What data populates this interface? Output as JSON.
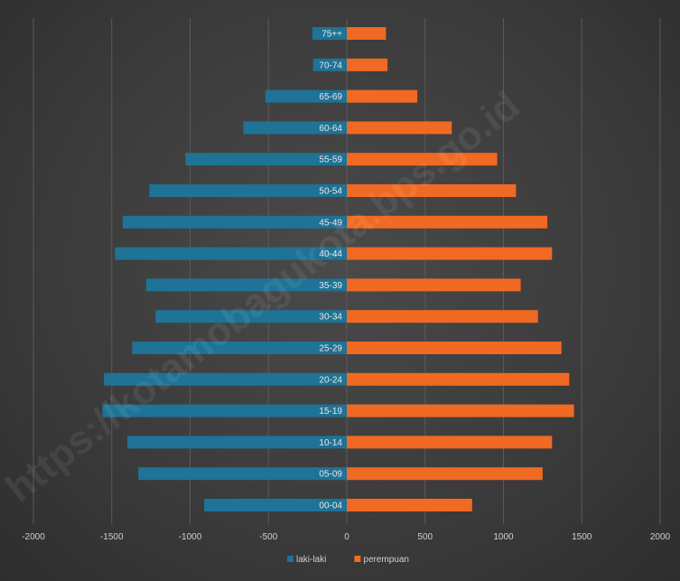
{
  "watermark": "https://kotamobagukota.bps.go.id",
  "chart_data": {
    "type": "bar",
    "orientation": "horizontal",
    "categories": [
      "75++",
      "70-74",
      "65-69",
      "60-64",
      "55-59",
      "50-54",
      "45-49",
      "40-44",
      "35-39",
      "30-34",
      "25-29",
      "20-24",
      "15-19",
      "10-14",
      "05-09",
      "00-04"
    ],
    "series": [
      {
        "name": "laki-laki",
        "color": "#1e7396",
        "values": [
          -220,
          -215,
          -520,
          -660,
          -1030,
          -1260,
          -1430,
          -1480,
          -1280,
          -1220,
          -1370,
          -1550,
          -1560,
          -1400,
          -1330,
          -910
        ]
      },
      {
        "name": "perempuan",
        "color": "#f06a23",
        "values": [
          250,
          260,
          450,
          670,
          960,
          1080,
          1280,
          1310,
          1110,
          1220,
          1370,
          1420,
          1450,
          1310,
          1250,
          800
        ]
      }
    ],
    "xlim": [
      -2000,
      2000
    ],
    "xticks": [
      "-2000",
      "-1500",
      "-1000",
      "-500",
      "0",
      "500",
      "1000",
      "1500",
      "2000"
    ],
    "grid": true,
    "legend_position": "bottom"
  }
}
